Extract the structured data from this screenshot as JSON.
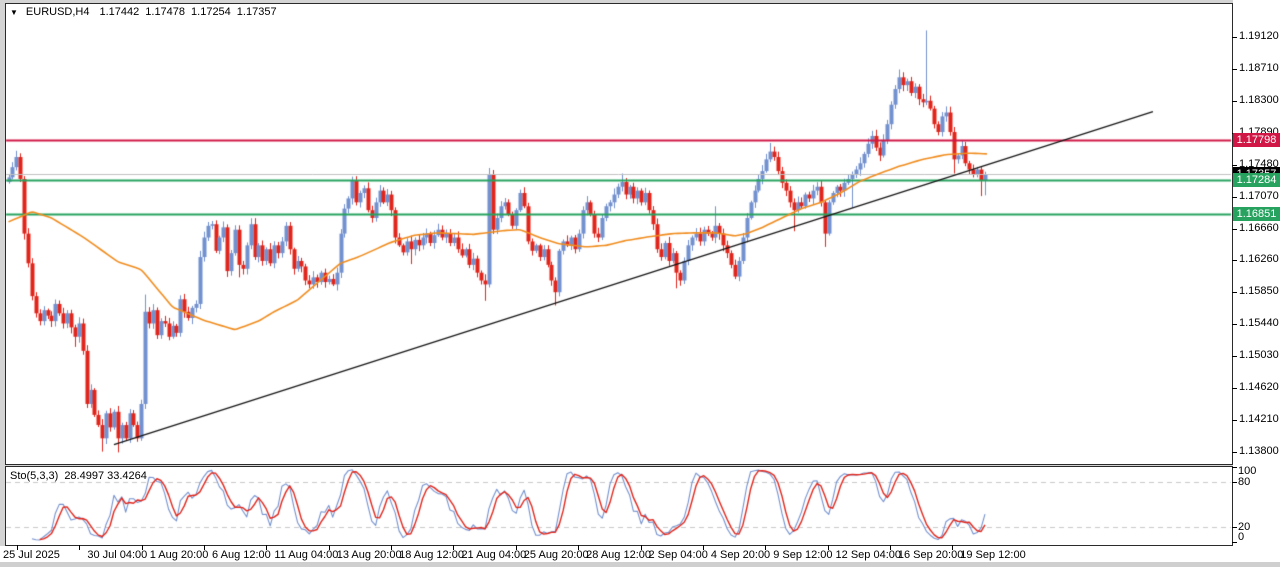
{
  "colors": {
    "bull": "#7391cf",
    "bear": "#e1251b",
    "ma": "#f08c1e",
    "trendline": "#141414",
    "resistance": "#d01745",
    "support_green": "#27a35f",
    "current_line": "#c0c0c0",
    "current_badge_bg": "#000000",
    "badge_text": "#ffffff",
    "stoch_main": "#7391cf",
    "stoch_signal": "#e1251b",
    "level_dashed": "#c8c8c8",
    "frame": "#2b2b2b",
    "panel_bg": "#ffffff",
    "outer_bg": "#d4d4d4",
    "text": "#000000"
  },
  "header": {
    "dropdown_icon": "▼",
    "symbol_period": "EURUSD,H4",
    "open": "1.17442",
    "high": "1.17478",
    "low": "1.17254",
    "close": "1.17357"
  },
  "indicator": {
    "label": "Sto(5,3,3)",
    "values": "28.4997 33.4264"
  },
  "chart_data": {
    "type": "candlestick",
    "symbol": "EURUSD",
    "timeframe": "H4",
    "title": "EURUSD,H4 1.17442 1.17478 1.17254 1.17357",
    "grid": false,
    "legend_position": "none",
    "ylim": [
      1.138,
      1.1933
    ],
    "price_ticks": [
      "1.19120",
      "1.18710",
      "1.18300",
      "1.17890",
      "1.17480",
      "1.17070",
      "1.16660",
      "1.16260",
      "1.15850",
      "1.15440",
      "1.15030",
      "1.14620",
      "1.14210",
      "1.13800"
    ],
    "time_ticks": [
      "25 Jul 2025",
      "30 Jul 04:00",
      "1 Aug 20:00",
      "6 Aug 12:00",
      "11 Aug 04:00",
      "13 Aug 20:00",
      "18 Aug 12:00",
      "21 Aug 04:00",
      "25 Aug 20:00",
      "28 Aug 12:00",
      "2 Sep 04:00",
      "4 Sep 20:00",
      "9 Sep 12:00",
      "12 Sep 04:00",
      "16 Sep 20:00",
      "19 Sep 12:00"
    ],
    "horizontal_levels": [
      {
        "name": "resistance-line",
        "price": 1.17798,
        "label": "1.17798",
        "badge_color": "#d01745",
        "line_color": "#d01745",
        "line_width": 2
      },
      {
        "name": "current-price-line",
        "price": 1.17357,
        "label": "1.17357",
        "badge_color": "#000000",
        "line_color": "#c0c0c0",
        "line_width": 1
      },
      {
        "name": "support-line-1",
        "price": 1.17284,
        "label": "1.17284",
        "badge_color": "#27a35f",
        "line_color": "#27a35f",
        "line_width": 2
      },
      {
        "name": "support-line-2",
        "price": 1.16851,
        "label": "1.16851",
        "badge_color": "#27a35f",
        "line_color": "#27a35f",
        "line_width": 2
      }
    ],
    "trendline": {
      "from_bar": 27,
      "from_price": 1.139,
      "to_bar": 293,
      "to_price": 1.1816
    },
    "moving_average": {
      "color": "#f08c1e",
      "anchors": [
        [
          0,
          1.1675
        ],
        [
          6,
          1.1688
        ],
        [
          11,
          1.168
        ],
        [
          19,
          1.1656
        ],
        [
          28,
          1.1624
        ],
        [
          34,
          1.1614
        ],
        [
          42,
          1.1566
        ],
        [
          50,
          1.1549
        ],
        [
          58,
          1.1537
        ],
        [
          64,
          1.1548
        ],
        [
          68,
          1.156
        ],
        [
          74,
          1.1575
        ],
        [
          80,
          1.1601
        ],
        [
          85,
          1.1622
        ],
        [
          90,
          1.1631
        ],
        [
          98,
          1.1649
        ],
        [
          104,
          1.1658
        ],
        [
          110,
          1.1661
        ],
        [
          119,
          1.1659
        ],
        [
          127,
          1.1664
        ],
        [
          131,
          1.1665
        ],
        [
          136,
          1.1655
        ],
        [
          141,
          1.1647
        ],
        [
          148,
          1.1643
        ],
        [
          153,
          1.1645
        ],
        [
          158,
          1.1651
        ],
        [
          164,
          1.1656
        ],
        [
          170,
          1.166
        ],
        [
          176,
          1.1661
        ],
        [
          181,
          1.1661
        ],
        [
          186,
          1.1657
        ],
        [
          189,
          1.166
        ],
        [
          193,
          1.1668
        ],
        [
          198,
          1.168
        ],
        [
          203,
          1.1692
        ],
        [
          208,
          1.17
        ],
        [
          213,
          1.1712
        ],
        [
          218,
          1.1727
        ],
        [
          223,
          1.1737
        ],
        [
          228,
          1.1746
        ],
        [
          234,
          1.1755
        ],
        [
          240,
          1.1761
        ],
        [
          246,
          1.1763
        ],
        [
          251,
          1.1762
        ]
      ]
    },
    "candles": {
      "first_open": 1.1726,
      "closes": [
        1.1732,
        1.1745,
        1.1758,
        1.173,
        1.166,
        1.1622,
        1.158,
        1.1558,
        1.1548,
        1.1562,
        1.1555,
        1.1548,
        1.157,
        1.1558,
        1.1545,
        1.1558,
        1.154,
        1.1528,
        1.1545,
        1.151,
        1.1442,
        1.146,
        1.1428,
        1.1415,
        1.1398,
        1.143,
        1.1412,
        1.1432,
        1.1398,
        1.1415,
        1.1398,
        1.143,
        1.1415,
        1.1398,
        1.1442,
        1.156,
        1.1545,
        1.1562,
        1.153,
        1.1548,
        1.1545,
        1.1528,
        1.1542,
        1.1533,
        1.1576,
        1.156,
        1.1552,
        1.1565,
        1.157,
        1.163,
        1.1655,
        1.167,
        1.1672,
        1.1638,
        1.1655,
        1.1668,
        1.1612,
        1.1635,
        1.1665,
        1.162,
        1.1615,
        1.1645,
        1.1672,
        1.163,
        1.1645,
        1.1625,
        1.164,
        1.1622,
        1.1645,
        1.1635,
        1.165,
        1.167,
        1.164,
        1.1615,
        1.1625,
        1.1618,
        1.16,
        1.1595,
        1.1604,
        1.1598,
        1.161,
        1.1598,
        1.1602,
        1.1595,
        1.161,
        1.166,
        1.1692,
        1.1705,
        1.1728,
        1.17,
        1.1712,
        1.1718,
        1.169,
        1.168,
        1.17,
        1.1715,
        1.17,
        1.171,
        1.169,
        1.1655,
        1.1645,
        1.1636,
        1.165,
        1.164,
        1.1652,
        1.1645,
        1.1655,
        1.166,
        1.1648,
        1.1658,
        1.1665,
        1.1655,
        1.166,
        1.1648,
        1.1655,
        1.164,
        1.1632,
        1.164,
        1.162,
        1.1628,
        1.161,
        1.16,
        1.1595,
        1.1735,
        1.1665,
        1.168,
        1.1695,
        1.17,
        1.1685,
        1.167,
        1.169,
        1.1712,
        1.1695,
        1.165,
        1.1638,
        1.1645,
        1.163,
        1.164,
        1.162,
        1.16,
        1.1585,
        1.1638,
        1.165,
        1.1645,
        1.1655,
        1.164,
        1.166,
        1.169,
        1.17,
        1.1685,
        1.166,
        1.1655,
        1.168,
        1.1695,
        1.17,
        1.171,
        1.172,
        1.1726,
        1.171,
        1.172,
        1.1705,
        1.1715,
        1.17,
        1.1712,
        1.169,
        1.1672,
        1.164,
        1.163,
        1.1648,
        1.1625,
        1.1635,
        1.161,
        1.16,
        1.1625,
        1.1645,
        1.1655,
        1.166,
        1.165,
        1.1665,
        1.166,
        1.1655,
        1.167,
        1.166,
        1.1645,
        1.1635,
        1.162,
        1.1605,
        1.1625,
        1.1655,
        1.168,
        1.17,
        1.1715,
        1.173,
        1.174,
        1.1755,
        1.1765,
        1.1758,
        1.174,
        1.1725,
        1.1715,
        1.17,
        1.169,
        1.17,
        1.1695,
        1.171,
        1.1705,
        1.1715,
        1.172,
        1.17,
        1.166,
        1.17,
        1.1712,
        1.172,
        1.1715,
        1.1725,
        1.173,
        1.1735,
        1.1742,
        1.175,
        1.1762,
        1.1775,
        1.1785,
        1.177,
        1.176,
        1.178,
        1.18,
        1.1825,
        1.1845,
        1.186,
        1.185,
        1.1855,
        1.184,
        1.1848,
        1.1832,
        1.1828,
        1.183,
        1.182,
        1.18,
        1.179,
        1.181,
        1.1815,
        1.179,
        1.1755,
        1.176,
        1.1772,
        1.175,
        1.1742,
        1.1735,
        1.1742,
        1.1728,
        1.17357
      ],
      "wick_overrides": {
        "2": [
          1.1766,
          null
        ],
        "17": [
          null,
          1.1515
        ],
        "24": [
          null,
          1.1381
        ],
        "28": [
          null,
          1.138
        ],
        "35": [
          1.1582,
          null
        ],
        "59": [
          null,
          1.1604
        ],
        "77": [
          null,
          1.159
        ],
        "88": [
          1.1733,
          null
        ],
        "103": [
          null,
          1.1621
        ],
        "122": [
          null,
          1.1574
        ],
        "123": [
          1.1744,
          null
        ],
        "140": [
          null,
          1.1568
        ],
        "148": [
          1.1708,
          null
        ],
        "157": [
          1.1737,
          null
        ],
        "171": [
          null,
          1.159
        ],
        "181": [
          1.1695,
          null
        ],
        "195": [
          1.1776,
          null
        ],
        "201": [
          null,
          1.1663
        ],
        "209": [
          null,
          1.1643
        ],
        "216": [
          null,
          1.1693
        ],
        "228": [
          1.187,
          null
        ],
        "235": [
          1.192,
          null
        ],
        "242": [
          null,
          1.1737
        ],
        "249": [
          null,
          1.1708
        ],
        "250": [
          null,
          1.1709
        ]
      }
    },
    "stochastic": {
      "label": "Sto(5,3,3)",
      "k_period": 5,
      "slowing": 3,
      "d_period": 3,
      "k_value": 28.4997,
      "d_value": 33.4264,
      "levels": [
        80,
        20
      ],
      "scale_labels": [
        "100",
        "80",
        "20",
        "0"
      ],
      "range": [
        0,
        100
      ]
    }
  }
}
